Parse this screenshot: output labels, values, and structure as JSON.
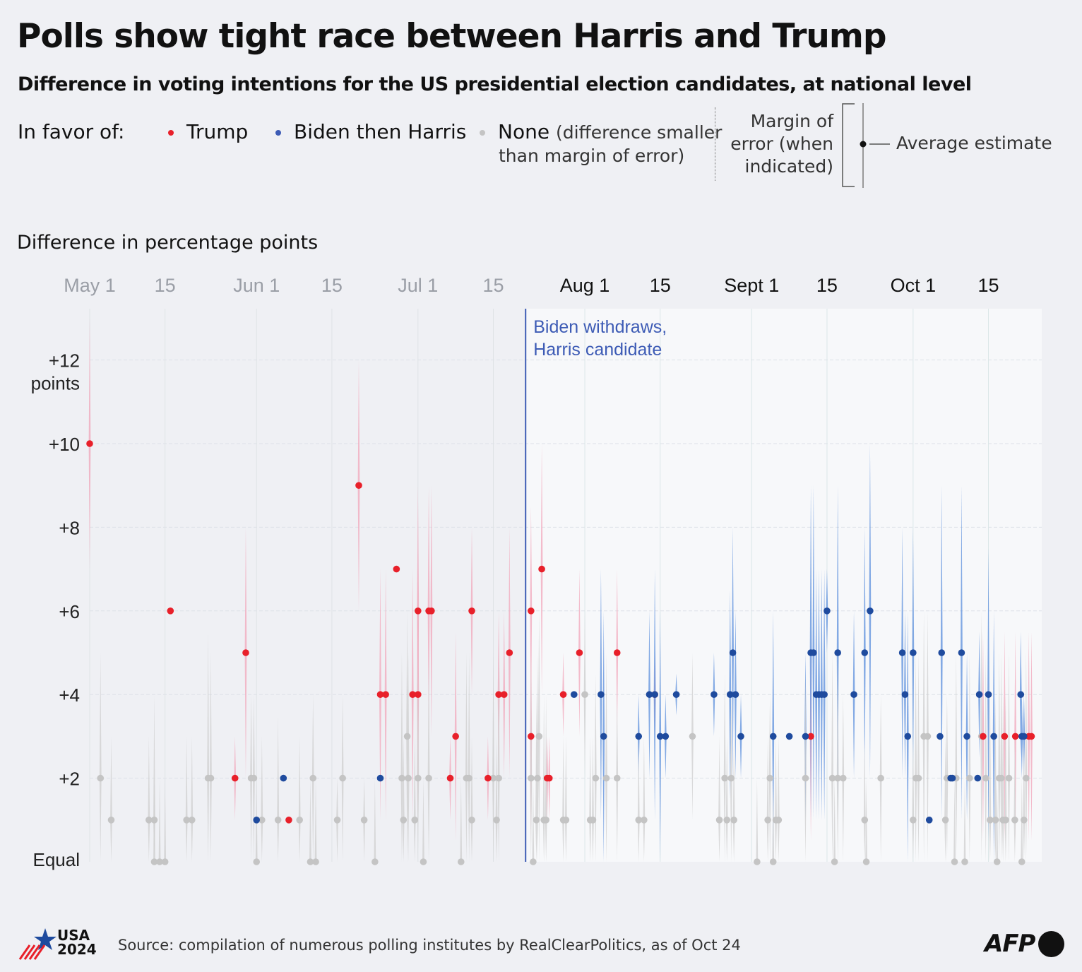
{
  "title": "Polls show tight race between Harris and Trump",
  "subtitle": "Difference in voting intentions for the US presidential election candidates, at national level",
  "legend": {
    "in_favor_of": "In favor of:",
    "trump": "Trump",
    "harris": "Biden then Harris",
    "none": "None",
    "none_note_1": "(difference smaller",
    "none_note_2": "than margin of error)",
    "moe_1": "Margin of",
    "moe_2": "error (when",
    "moe_3": "indicated)",
    "average": "Average estimate"
  },
  "colors": {
    "trump": "#e8202a",
    "harris": "#1f4b9e",
    "none": "#c4c4c4",
    "annotation": "#3d5bb5"
  },
  "footer": {
    "logo_top": "USA",
    "logo_bottom": "2024",
    "source": "Source: compilation of numerous polling institutes by RealClearPolitics, as of Oct 24",
    "agency": "AFP"
  },
  "chart_data": {
    "type": "scatter",
    "title": "Polls show tight race between Harris and Trump",
    "ylabel": "Difference in percentage points",
    "x_unit": "days since May 1 (2024)",
    "xlim": [
      0,
      177
    ],
    "ylim": [
      0,
      13
    ],
    "x_ticks": [
      {
        "day": 0,
        "label": "May 1",
        "faded": true
      },
      {
        "day": 14,
        "label": "15",
        "faded": true
      },
      {
        "day": 31,
        "label": "Jun 1",
        "faded": true
      },
      {
        "day": 45,
        "label": "15",
        "faded": true
      },
      {
        "day": 61,
        "label": "Jul 1",
        "faded": true
      },
      {
        "day": 75,
        "label": "15",
        "faded": true
      },
      {
        "day": 92,
        "label": "Aug 1",
        "faded": false
      },
      {
        "day": 106,
        "label": "15",
        "faded": false
      },
      {
        "day": 123,
        "label": "Sept 1",
        "faded": false
      },
      {
        "day": 137,
        "label": "15",
        "faded": false
      },
      {
        "day": 153,
        "label": "Oct 1",
        "faded": false
      },
      {
        "day": 167,
        "label": "15",
        "faded": false
      }
    ],
    "y_ticks": [
      {
        "value": 0,
        "label": "Equal"
      },
      {
        "value": 2,
        "label": "+2"
      },
      {
        "value": 4,
        "label": "+4"
      },
      {
        "value": 6,
        "label": "+6"
      },
      {
        "value": 8,
        "label": "+8"
      },
      {
        "value": 10,
        "label": "+10"
      },
      {
        "value": 12,
        "label": "+12",
        "sub": "points"
      }
    ],
    "annotation": {
      "day": 81,
      "line1": "Biden withdraws,",
      "line2": "Harris candidate"
    },
    "point_fields": [
      "day",
      "difference",
      "in_favor_of (T=Trump, H=Biden/Harris, N=None)",
      "margin_of_error"
    ],
    "points": [
      [
        0,
        10,
        "T",
        3
      ],
      [
        15,
        6,
        "T",
        0
      ],
      [
        27,
        2,
        "T",
        1
      ],
      [
        29,
        5,
        "T",
        3
      ],
      [
        37,
        1,
        "T",
        0
      ],
      [
        50,
        9,
        "T",
        3
      ],
      [
        54,
        4,
        "T",
        3
      ],
      [
        55,
        4,
        "T",
        3
      ],
      [
        57,
        7,
        "T",
        0
      ],
      [
        60,
        4,
        "T",
        3
      ],
      [
        61,
        6,
        "T",
        3
      ],
      [
        61,
        4,
        "T",
        3
      ],
      [
        63,
        6,
        "T",
        3
      ],
      [
        63.5,
        6,
        "T",
        3
      ],
      [
        67,
        2,
        "T",
        1
      ],
      [
        68,
        3,
        "T",
        2.5
      ],
      [
        71,
        6,
        "T",
        2
      ],
      [
        74,
        2,
        "T",
        1
      ],
      [
        76,
        4,
        "T",
        2
      ],
      [
        77,
        4,
        "T",
        2
      ],
      [
        78,
        5,
        "T",
        3
      ],
      [
        82,
        3,
        "T",
        2.5
      ],
      [
        82,
        6,
        "T",
        2.5
      ],
      [
        84,
        7,
        "T",
        3
      ],
      [
        85,
        2,
        "T",
        1
      ],
      [
        85.4,
        2,
        "T",
        1
      ],
      [
        88,
        4,
        "T",
        1
      ],
      [
        91,
        5,
        "T",
        2
      ],
      [
        98,
        5,
        "T",
        2
      ],
      [
        105,
        4,
        "T",
        1
      ],
      [
        134,
        3,
        "T",
        2.5
      ],
      [
        166,
        3,
        "T",
        2.5
      ],
      [
        170,
        3,
        "T",
        2.5
      ],
      [
        172,
        3,
        "T",
        2.5
      ],
      [
        174.5,
        3,
        "T",
        2.5
      ],
      [
        175,
        3,
        "T",
        2.5
      ],
      [
        31,
        1,
        "H",
        0
      ],
      [
        36,
        2,
        "H",
        0
      ],
      [
        54,
        2,
        "H",
        0
      ],
      [
        90,
        4,
        "H",
        0
      ],
      [
        95,
        4,
        "H",
        3
      ],
      [
        95.5,
        3,
        "H",
        3
      ],
      [
        102,
        3,
        "H",
        1
      ],
      [
        104,
        4,
        "H",
        2
      ],
      [
        105,
        4,
        "H",
        3
      ],
      [
        106,
        3,
        "H",
        3
      ],
      [
        107,
        3,
        "H",
        1
      ],
      [
        109,
        4,
        "H",
        0.5
      ],
      [
        116,
        4,
        "H",
        1
      ],
      [
        119,
        4,
        "H",
        2.5
      ],
      [
        119.5,
        5,
        "H",
        3
      ],
      [
        120,
        4,
        "H",
        2
      ],
      [
        121,
        3,
        "H",
        1
      ],
      [
        127,
        3,
        "H",
        3
      ],
      [
        130,
        3,
        "H",
        0
      ],
      [
        133,
        3,
        "H",
        2
      ],
      [
        134,
        5,
        "H",
        4
      ],
      [
        134.5,
        5,
        "H",
        4
      ],
      [
        135,
        4,
        "H",
        3
      ],
      [
        135.5,
        4,
        "H",
        3
      ],
      [
        136,
        4,
        "H",
        3
      ],
      [
        136.5,
        4,
        "H",
        3
      ],
      [
        137,
        6,
        "H",
        1
      ],
      [
        139,
        5,
        "H",
        4
      ],
      [
        142,
        4,
        "H",
        2
      ],
      [
        144,
        5,
        "H",
        3
      ],
      [
        145,
        6,
        "H",
        4
      ],
      [
        151,
        5,
        "H",
        3
      ],
      [
        151.5,
        4,
        "H",
        2
      ],
      [
        152,
        3,
        "H",
        3
      ],
      [
        153,
        5,
        "H",
        3
      ],
      [
        156,
        1,
        "H",
        0
      ],
      [
        158,
        3,
        "H",
        0
      ],
      [
        158.3,
        5,
        "H",
        4
      ],
      [
        160,
        2,
        "H",
        0
      ],
      [
        160.3,
        2,
        "H",
        0
      ],
      [
        162,
        5,
        "H",
        4
      ],
      [
        163,
        3,
        "H",
        2
      ],
      [
        165,
        2,
        "H",
        0
      ],
      [
        165.3,
        4,
        "H",
        1.5
      ],
      [
        167,
        4,
        "H",
        3.5
      ],
      [
        168,
        3,
        "H",
        3
      ],
      [
        173,
        4,
        "H",
        1.5
      ],
      [
        173.2,
        3,
        "H",
        1
      ],
      [
        173.6,
        3,
        "H",
        1
      ],
      [
        2,
        2,
        "N",
        3
      ],
      [
        4,
        1,
        "N",
        2
      ],
      [
        11,
        1,
        "N",
        2
      ],
      [
        12,
        1,
        "N",
        3
      ],
      [
        12,
        0,
        "N",
        2
      ],
      [
        13,
        0,
        "N",
        2
      ],
      [
        14,
        0,
        "N",
        2
      ],
      [
        18,
        1,
        "N",
        2
      ],
      [
        19,
        1,
        "N",
        2
      ],
      [
        22,
        2,
        "N",
        3.5
      ],
      [
        22.5,
        2,
        "N",
        3
      ],
      [
        30,
        2,
        "N",
        2
      ],
      [
        30.5,
        2,
        "N",
        2
      ],
      [
        31,
        0,
        "N",
        2
      ],
      [
        32,
        1,
        "N",
        2
      ],
      [
        35,
        1,
        "N",
        2.5
      ],
      [
        39,
        1,
        "N",
        2
      ],
      [
        41,
        0,
        "N",
        2
      ],
      [
        42,
        0,
        "N",
        2
      ],
      [
        41.5,
        2,
        "N",
        2
      ],
      [
        46,
        1,
        "N",
        1
      ],
      [
        47,
        2,
        "N",
        2
      ],
      [
        51,
        1,
        "N",
        1
      ],
      [
        53,
        0,
        "N",
        2
      ],
      [
        59,
        3,
        "N",
        3
      ],
      [
        58,
        2,
        "N",
        3
      ],
      [
        58.3,
        1,
        "N",
        2
      ],
      [
        59.2,
        2,
        "N",
        3
      ],
      [
        60.4,
        1,
        "N",
        2
      ],
      [
        61,
        2,
        "N",
        3
      ],
      [
        62,
        0,
        "N",
        2
      ],
      [
        63,
        2,
        "N",
        3
      ],
      [
        69,
        0,
        "N",
        2
      ],
      [
        70,
        2,
        "N",
        3
      ],
      [
        70.5,
        2,
        "N",
        3
      ],
      [
        71,
        1,
        "N",
        2
      ],
      [
        75,
        2,
        "N",
        3
      ],
      [
        76,
        2,
        "N",
        3
      ],
      [
        75.6,
        1,
        "N",
        2
      ],
      [
        82,
        2,
        "N",
        3
      ],
      [
        82.4,
        0,
        "N",
        2
      ],
      [
        83,
        1,
        "N",
        3
      ],
      [
        83.2,
        2,
        "N",
        3
      ],
      [
        83.5,
        3,
        "N",
        3
      ],
      [
        84.4,
        1,
        "N",
        3
      ],
      [
        84.8,
        1,
        "N",
        3
      ],
      [
        88,
        1,
        "N",
        2
      ],
      [
        88.5,
        1,
        "N",
        2
      ],
      [
        92,
        4,
        "N",
        2
      ],
      [
        93,
        1,
        "N",
        2
      ],
      [
        93.5,
        1,
        "N",
        2
      ],
      [
        94,
        2,
        "N",
        2.5
      ],
      [
        96,
        2,
        "N",
        3
      ],
      [
        98,
        2,
        "N",
        2
      ],
      [
        102,
        1,
        "N",
        2
      ],
      [
        103,
        1,
        "N",
        2
      ],
      [
        112,
        3,
        "N",
        2
      ],
      [
        117,
        1,
        "N",
        2
      ],
      [
        118,
        2,
        "N",
        2.5
      ],
      [
        118.4,
        1,
        "N",
        2
      ],
      [
        119.2,
        2,
        "N",
        2
      ],
      [
        119.7,
        1,
        "N",
        2
      ],
      [
        124,
        0,
        "N",
        2
      ],
      [
        126,
        1,
        "N",
        2
      ],
      [
        126.4,
        2,
        "N",
        2
      ],
      [
        127,
        0,
        "N",
        2
      ],
      [
        127.5,
        1,
        "N",
        2
      ],
      [
        128,
        1,
        "N",
        2
      ],
      [
        133,
        2,
        "N",
        2.5
      ],
      [
        138,
        2,
        "N",
        3
      ],
      [
        138.4,
        0,
        "N",
        2
      ],
      [
        139,
        2,
        "N",
        3
      ],
      [
        140,
        2,
        "N",
        2
      ],
      [
        144,
        1,
        "N",
        2
      ],
      [
        144.3,
        0,
        "N",
        2
      ],
      [
        147,
        2,
        "N",
        2
      ],
      [
        153,
        1,
        "N",
        2
      ],
      [
        153.5,
        2,
        "N",
        3
      ],
      [
        154,
        2,
        "N",
        3
      ],
      [
        155,
        3,
        "N",
        3
      ],
      [
        155.7,
        3,
        "N",
        3
      ],
      [
        159,
        1,
        "N",
        2
      ],
      [
        159.3,
        2,
        "N",
        2
      ],
      [
        160.7,
        0,
        "N",
        2
      ],
      [
        161,
        2,
        "N",
        3
      ],
      [
        162.6,
        0,
        "N",
        2
      ],
      [
        163.5,
        2,
        "N",
        3
      ],
      [
        165.7,
        3,
        "N",
        3
      ],
      [
        166.5,
        2,
        "N",
        3
      ],
      [
        167.3,
        1,
        "N",
        3
      ],
      [
        168.3,
        1,
        "N",
        3
      ],
      [
        168.6,
        0,
        "N",
        2
      ],
      [
        169,
        2,
        "N",
        3
      ],
      [
        169.4,
        2,
        "N",
        3
      ],
      [
        169.7,
        1,
        "N",
        3
      ],
      [
        170.2,
        1,
        "N",
        3
      ],
      [
        170.8,
        2,
        "N",
        3
      ],
      [
        171.9,
        1,
        "N",
        2
      ],
      [
        173.2,
        0,
        "N",
        2
      ],
      [
        173.6,
        1,
        "N",
        2
      ],
      [
        174,
        2,
        "N",
        3
      ]
    ]
  }
}
